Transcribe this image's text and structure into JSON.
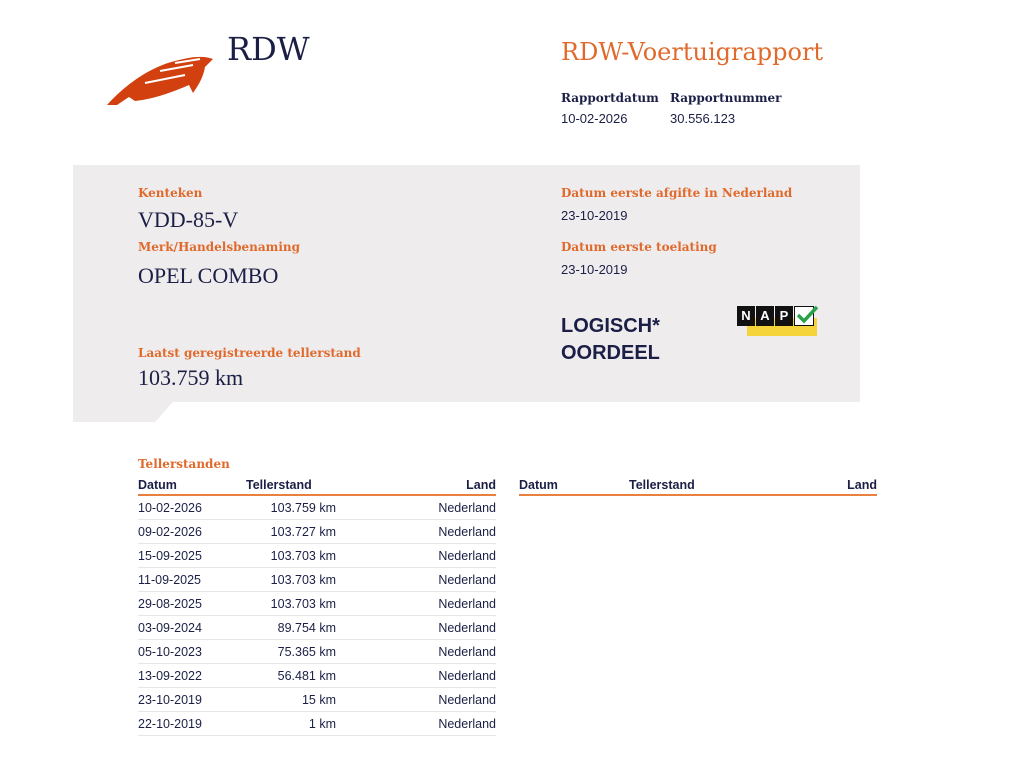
{
  "header": {
    "logo_text": "RDW",
    "title": "RDW-Voertuigrapport",
    "report_date_label": "Rapportdatum",
    "report_date": "10-02-2026",
    "report_number_label": "Rapportnummer",
    "report_number": "30.556.123"
  },
  "vehicle": {
    "plate_label": "Kenteken",
    "plate": "VDD-85-V",
    "brand_label": "Merk/Handelsbenaming",
    "brand": "OPEL COMBO",
    "odometer_label": "Laatst geregistreerde tellerstand",
    "odometer": "103.759 km",
    "first_issue_nl_label": "Datum eerste afgifte in Nederland",
    "first_issue_nl": "23-10-2019",
    "first_admission_label": "Datum eerste toelating",
    "first_admission": "23-10-2019",
    "verdict_line1": "LOGISCH*",
    "verdict_line2": "OORDEEL",
    "nap_letters": [
      "N",
      "A",
      "P"
    ],
    "colors": {
      "accent": "#e06a2c",
      "navy": "#1b1f45",
      "panel": "#efecee",
      "nap_yellow": "#f5d33a",
      "check": "#2aa24a"
    }
  },
  "readings": {
    "title": "Tellerstanden",
    "columns": [
      "Datum",
      "Tellerstand",
      "Land"
    ],
    "rows": [
      [
        "10-02-2026",
        "103.759 km",
        "Nederland"
      ],
      [
        "09-02-2026",
        "103.727 km",
        "Nederland"
      ],
      [
        "15-09-2025",
        "103.703 km",
        "Nederland"
      ],
      [
        "11-09-2025",
        "103.703 km",
        "Nederland"
      ],
      [
        "29-08-2025",
        "103.703 km",
        "Nederland"
      ],
      [
        "03-09-2024",
        "89.754 km",
        "Nederland"
      ],
      [
        "05-10-2023",
        "75.365 km",
        "Nederland"
      ],
      [
        "13-09-2022",
        "56.481 km",
        "Nederland"
      ],
      [
        "23-10-2019",
        "15 km",
        "Nederland"
      ],
      [
        "22-10-2019",
        "1 km",
        "Nederland"
      ]
    ]
  }
}
